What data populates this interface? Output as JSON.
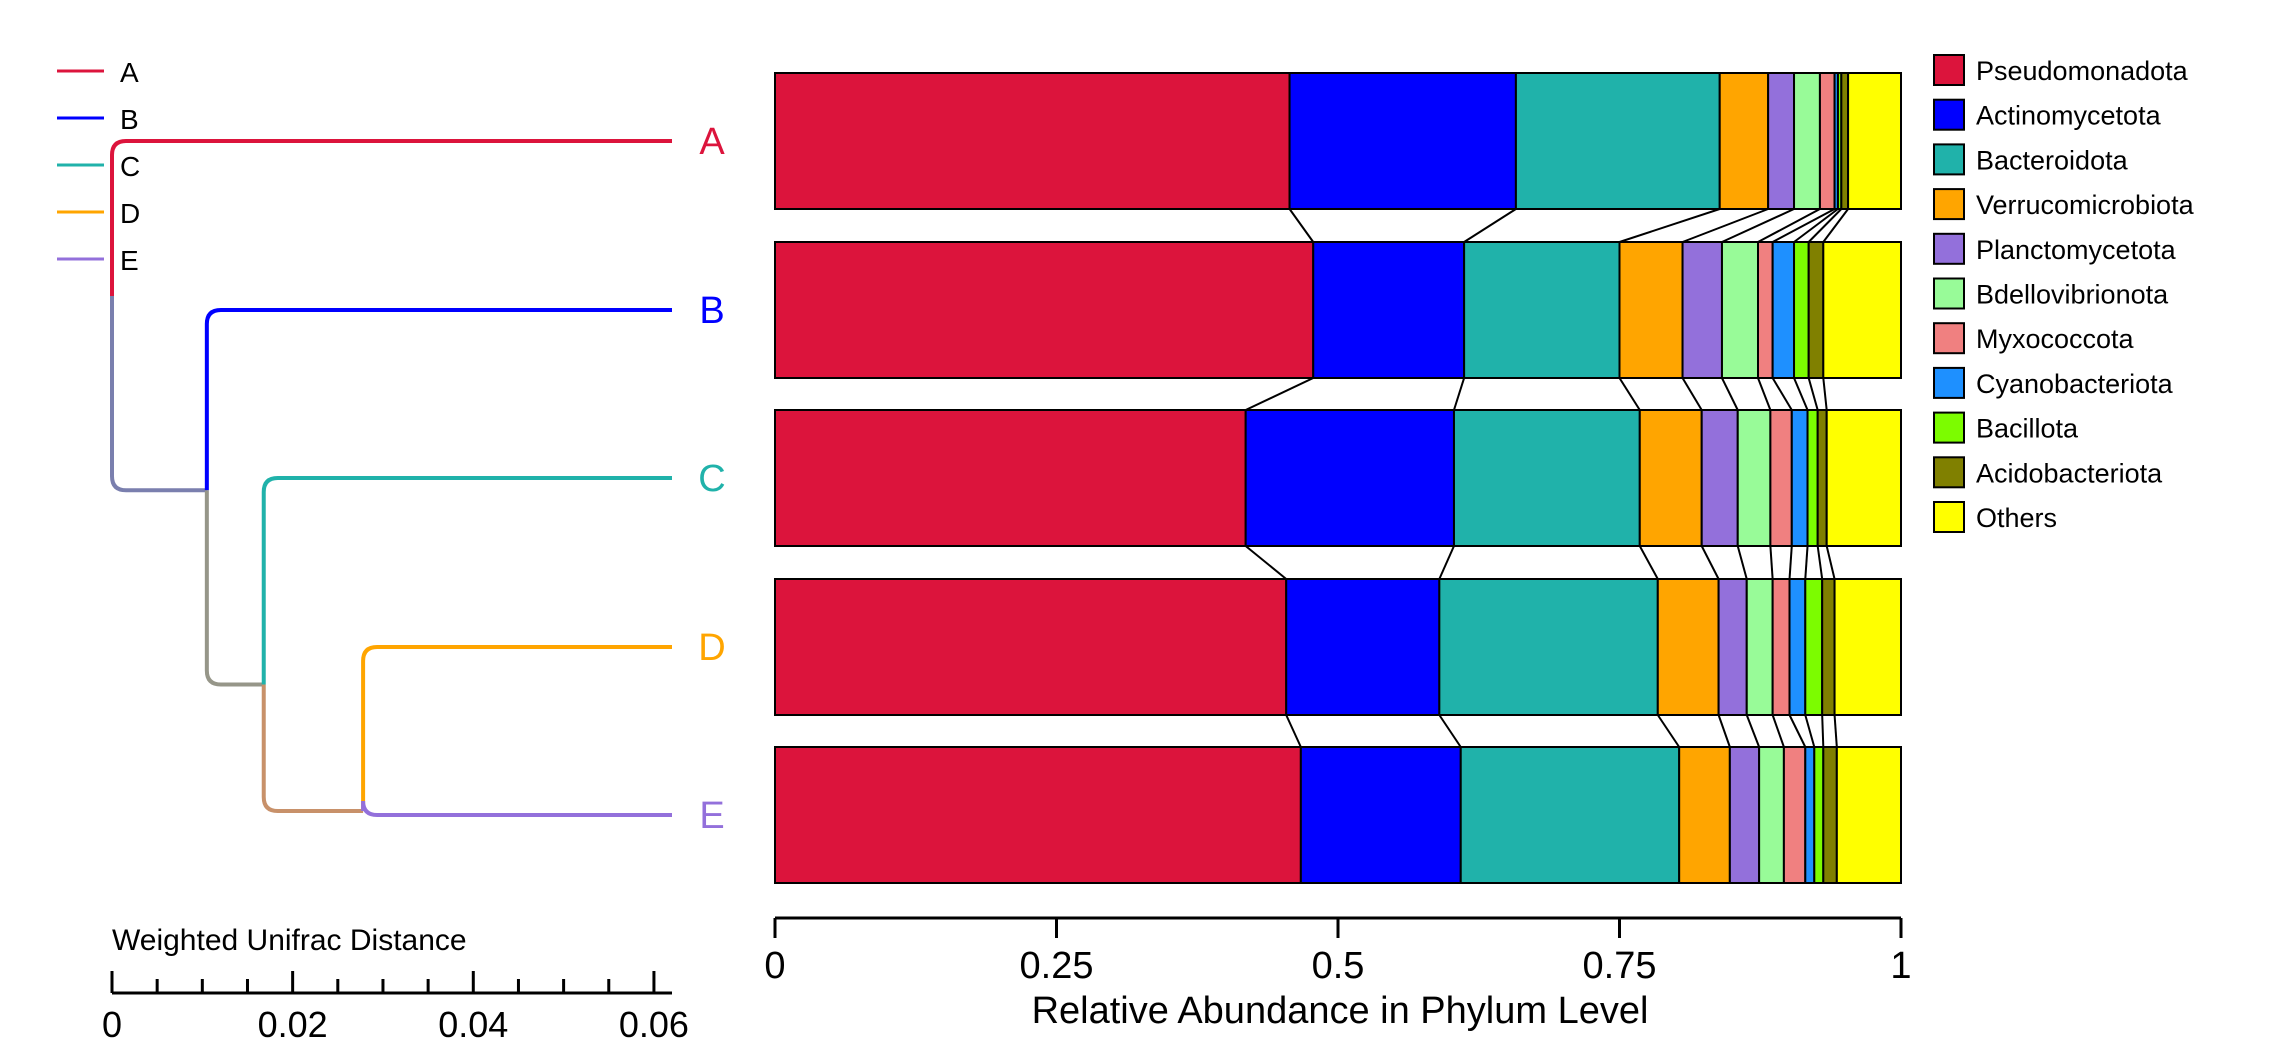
{
  "chart_data": [
    {
      "type": "dendrogram",
      "leaves": [
        "A",
        "B",
        "C",
        "D",
        "E"
      ],
      "leaf_colors": {
        "A": "#DC143C",
        "B": "#0000FF",
        "C": "#20B2AA",
        "D": "#FFA500",
        "E": "#9370DB"
      },
      "branch_colors": {
        "root_to_BCDE": "#7A7FAE",
        "BCDE_to_CDE": "#969689",
        "CDE_to_DE": "#C8916A"
      },
      "merges": [
        {
          "members": [
            "D",
            "E"
          ],
          "height": 0.0278
        },
        {
          "members": [
            "C",
            "D",
            "E"
          ],
          "height": 0.0168
        },
        {
          "members": [
            "B",
            "C",
            "D",
            "E"
          ],
          "height": 0.0105
        },
        {
          "members": [
            "A",
            "B",
            "C",
            "D",
            "E"
          ],
          "height": 0.0
        }
      ],
      "legend": {
        "items": [
          {
            "label": "A",
            "color": "#DC143C"
          },
          {
            "label": "B",
            "color": "#0000FF"
          },
          {
            "label": "C",
            "color": "#20B2AA"
          },
          {
            "label": "D",
            "color": "#FFA500"
          },
          {
            "label": "E",
            "color": "#9370DB"
          }
        ]
      },
      "xlabel": "Weighted Unifrac Distance",
      "xlim": [
        0,
        0.062
      ],
      "xticks": [
        "0",
        "0.02",
        "0.04",
        "0.06"
      ],
      "minor_tick_step": 0.005
    },
    {
      "type": "stacked_bar_horizontal",
      "categories": [
        "A",
        "B",
        "C",
        "D",
        "E"
      ],
      "xlabel": "Relative Abundance in Phylum Level",
      "xlim": [
        0,
        1
      ],
      "xticks": [
        "0",
        "0.25",
        "0.5",
        "0.75",
        "1"
      ],
      "series": [
        {
          "name": "Pseudomonadota",
          "color": "#DC143C",
          "values": [
            0.457,
            0.478,
            0.418,
            0.454,
            0.467
          ]
        },
        {
          "name": "Actinomycetota",
          "color": "#0000FF",
          "values": [
            0.201,
            0.134,
            0.185,
            0.136,
            0.142
          ]
        },
        {
          "name": "Bacteroidota",
          "color": "#20B2AA",
          "values": [
            0.181,
            0.138,
            0.165,
            0.194,
            0.194
          ]
        },
        {
          "name": "Verrucomicrobiota",
          "color": "#FFA500",
          "values": [
            0.043,
            0.056,
            0.055,
            0.054,
            0.045
          ]
        },
        {
          "name": "Planctomycetota",
          "color": "#9370DB",
          "values": [
            0.023,
            0.035,
            0.032,
            0.025,
            0.026
          ]
        },
        {
          "name": "Bdellovibrionota",
          "color": "#98FB98",
          "values": [
            0.023,
            0.032,
            0.029,
            0.023,
            0.022
          ]
        },
        {
          "name": "Myxococcota",
          "color": "#F08080",
          "values": [
            0.013,
            0.013,
            0.019,
            0.015,
            0.019
          ]
        },
        {
          "name": "Cyanobacteriota",
          "color": "#1E90FF",
          "values": [
            0.003,
            0.019,
            0.014,
            0.014,
            0.008
          ]
        },
        {
          "name": "Bacillota",
          "color": "#7CFC00",
          "values": [
            0.003,
            0.013,
            0.009,
            0.015,
            0.008
          ]
        },
        {
          "name": "Acidobacteriota",
          "color": "#808000",
          "values": [
            0.006,
            0.013,
            0.008,
            0.011,
            0.012
          ]
        },
        {
          "name": "Others",
          "color": "#FFFF00",
          "values": [
            0.047,
            0.069,
            0.066,
            0.059,
            0.057
          ]
        }
      ],
      "legend": {
        "position": "right"
      }
    }
  ]
}
